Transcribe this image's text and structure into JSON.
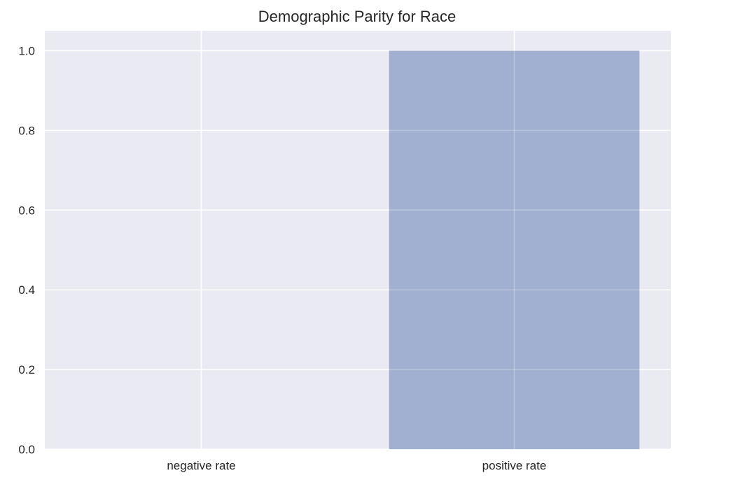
{
  "chart_data": {
    "type": "bar",
    "title": "Demographic Parity for Race",
    "xlabel": "",
    "ylabel": "",
    "categories": [
      "negative rate",
      "positive rate"
    ],
    "values": [
      0.0,
      1.0
    ],
    "ylim": [
      0.0,
      1.05
    ],
    "yticks": [
      "0.0",
      "0.2",
      "0.4",
      "0.6",
      "0.8",
      "1.0"
    ],
    "grid": true,
    "style": "seaborn",
    "colors": {
      "bar": "#9dadcf",
      "plot_background": "#eaeaf2",
      "grid": "#ffffff",
      "text": "#262626"
    }
  }
}
